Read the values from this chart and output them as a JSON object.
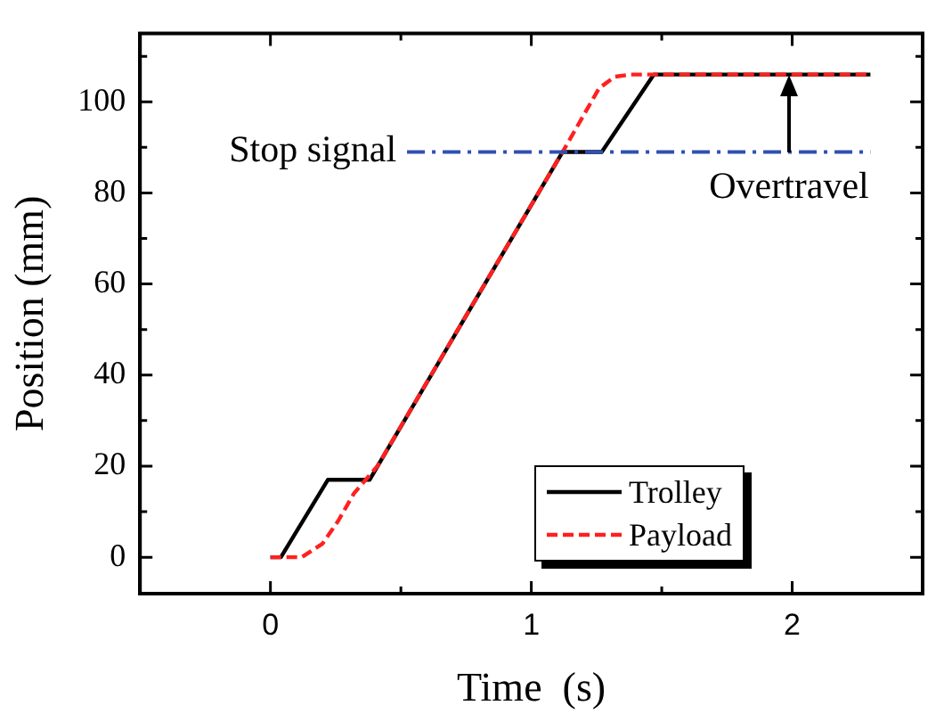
{
  "chart_data": {
    "type": "line",
    "xlabel": "Time  (s)",
    "ylabel": "Position (mm)",
    "xlim": [
      -0.5,
      2.5
    ],
    "xticks": [
      {
        "value": -0.5,
        "label": null
      },
      0,
      {
        "value": 0.5,
        "label": null
      },
      1,
      {
        "value": 1.5,
        "label": null
      },
      2,
      {
        "value": 2.5,
        "label": null
      }
    ],
    "ylim": [
      -8,
      115
    ],
    "yticks": [
      0,
      {
        "value": 10,
        "label": null
      },
      20,
      {
        "value": 30,
        "label": null
      },
      40,
      {
        "value": 50,
        "label": null
      },
      60,
      {
        "value": 70,
        "label": null
      },
      80,
      {
        "value": 90,
        "label": null
      },
      100,
      {
        "value": 110,
        "label": null
      }
    ],
    "grid": false,
    "legend": "bottom right",
    "marker": "none",
    "series": [
      {
        "name": "Trolley",
        "color": "#000000",
        "line_style": "solid",
        "x": [
          0,
          0.04,
          0.22,
          0.38,
          1.12,
          1.27,
          1.47,
          2.3
        ],
        "values": [
          0,
          0,
          17,
          17,
          89,
          89,
          106,
          106
        ]
      },
      {
        "name": "Payload",
        "color": "#ff2020",
        "line_style": "dashed",
        "x": [
          0,
          0.12,
          0.2,
          0.26,
          0.32,
          0.41,
          1.12,
          1.16,
          1.21,
          1.26,
          1.32,
          1.38,
          2.3
        ],
        "values": [
          0,
          0,
          3,
          8,
          14,
          20,
          89,
          93,
          98,
          103,
          105.5,
          106,
          106
        ]
      }
    ],
    "ref_lines": [
      {
        "axis": "y",
        "value": 89,
        "label": "Stop signal",
        "color": "#3050b0",
        "line_style": "dashed"
      }
    ],
    "annotations": [
      "Overtravel"
    ]
  }
}
